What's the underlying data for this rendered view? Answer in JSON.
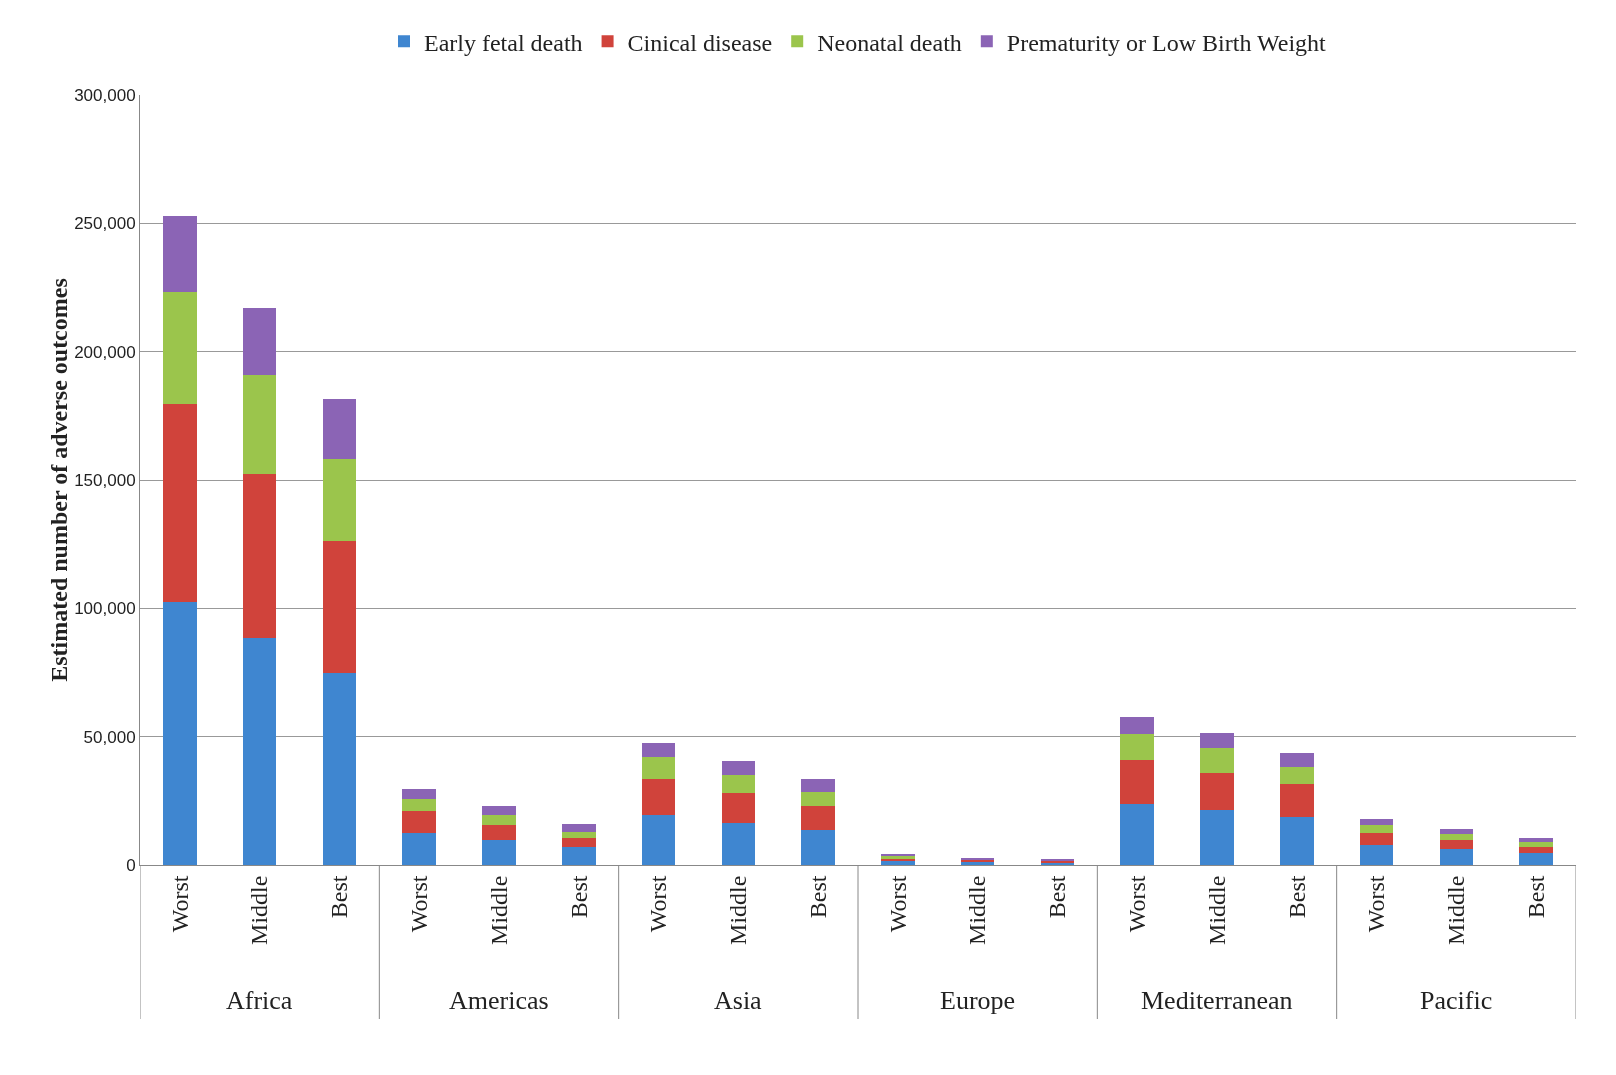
{
  "chart_data": {
    "type": "bar",
    "stacked": true,
    "ylabel": "Estimated number of adverse outcomes",
    "categories": [
      "Worst",
      "Middle",
      "Best",
      "Worst",
      "Middle",
      "Best",
      "Worst",
      "Middle",
      "Best",
      "Worst",
      "Middle",
      "Best",
      "Worst",
      "Middle",
      "Best",
      "Worst",
      "Middle",
      "Best"
    ],
    "annotations": [
      "Africa",
      "Americas",
      "Asia",
      "Europe",
      "Mediterranean",
      "Pacific"
    ],
    "series": [
      {
        "name": "Early fetal death",
        "color": "#3f86d0",
        "values": [
          102500,
          88400,
          74700,
          12600,
          9900,
          7200,
          19400,
          16400,
          13700,
          1500,
          1200,
          900,
          23600,
          21300,
          18700,
          7600,
          6100,
          4600
        ]
      },
      {
        "name": "Cinical disease",
        "color": "#d0433b",
        "values": [
          77000,
          64000,
          51500,
          8400,
          5700,
          3500,
          14100,
          11800,
          9200,
          1200,
          900,
          700,
          17200,
          14500,
          12900,
          5000,
          3800,
          2300
        ]
      },
      {
        "name": "Neonatal death",
        "color": "#9bc54c",
        "values": [
          43800,
          38500,
          32000,
          4900,
          3800,
          2300,
          8400,
          6900,
          5700,
          700,
          null,
          null,
          10300,
          9600,
          6500,
          3000,
          2300,
          1900
        ]
      },
      {
        "name": "Prematurity or Low Birth Weight",
        "color": "#8b64b5",
        "values": [
          29700,
          26300,
          23300,
          3800,
          3500,
          3000,
          5800,
          5300,
          4900,
          800,
          600,
          400,
          6500,
          6100,
          5700,
          2300,
          1900,
          1900
        ]
      }
    ],
    "ylim": [
      0,
      300000
    ],
    "yticks": [
      {
        "value": 0,
        "label": "0"
      },
      {
        "value": 50000,
        "label": "50,000"
      },
      {
        "value": 100000,
        "label": "100,000"
      },
      {
        "value": 150000,
        "label": "150,000"
      },
      {
        "value": 200000,
        "label": "200,000"
      },
      {
        "value": 250000,
        "label": "250,000"
      },
      {
        "value": 300000,
        "label": "300,000"
      }
    ],
    "grid": "y",
    "legend": "top"
  }
}
